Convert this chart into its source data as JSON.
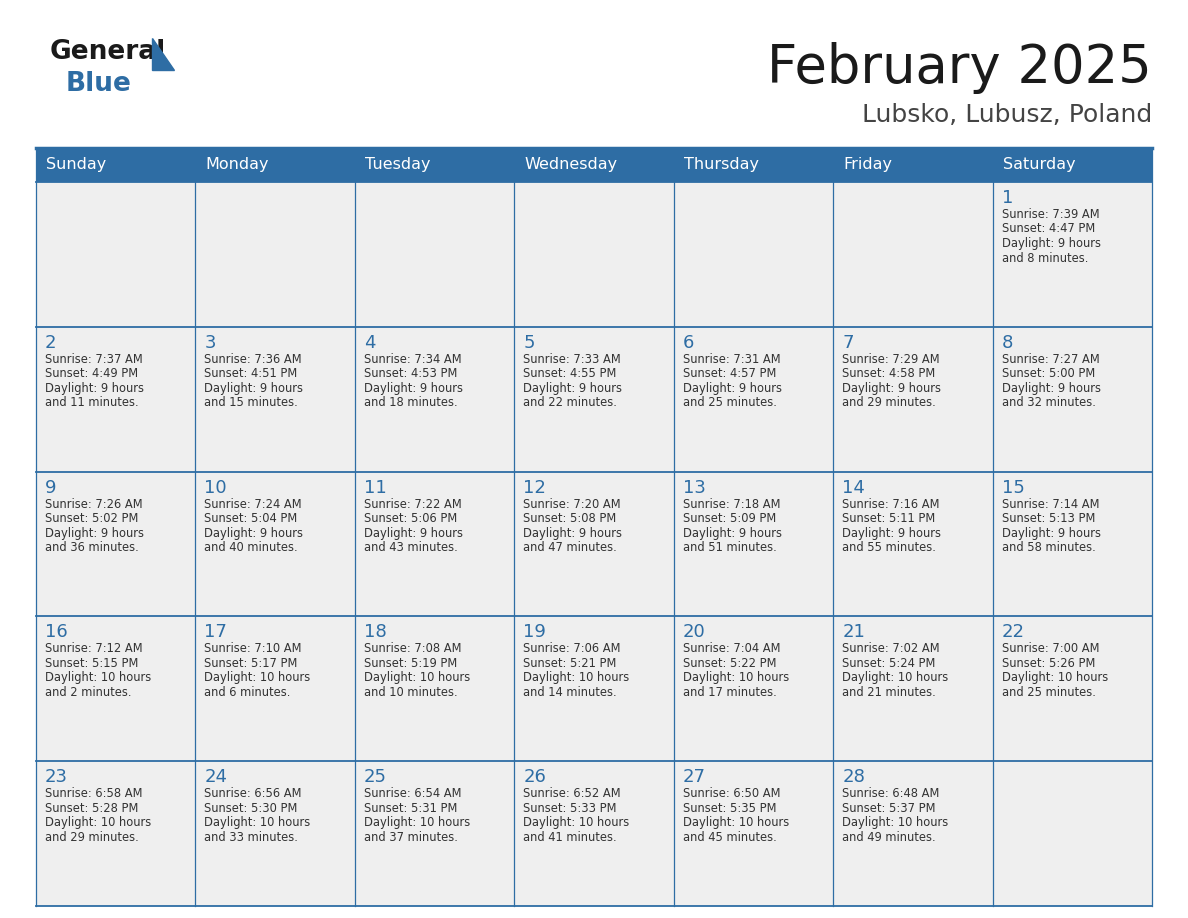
{
  "title": "February 2025",
  "subtitle": "Lubsko, Lubusz, Poland",
  "days_of_week": [
    "Sunday",
    "Monday",
    "Tuesday",
    "Wednesday",
    "Thursday",
    "Friday",
    "Saturday"
  ],
  "header_bg": "#2E6DA4",
  "header_text": "#FFFFFF",
  "cell_bg": "#EFEFEF",
  "border_color": "#2E6DA4",
  "day_number_color": "#2E6DA4",
  "text_color": "#333333",
  "title_color": "#1a1a1a",
  "subtitle_color": "#444444",
  "logo_black": "#1a1a1a",
  "logo_blue": "#2E6DA4",
  "calendar_data": [
    [
      null,
      null,
      null,
      null,
      null,
      null,
      {
        "day": "1",
        "sunrise": "7:39 AM",
        "sunset": "4:47 PM",
        "daylight_h": "9 hours",
        "daylight_m": "8 minutes."
      }
    ],
    [
      {
        "day": "2",
        "sunrise": "7:37 AM",
        "sunset": "4:49 PM",
        "daylight_h": "9 hours",
        "daylight_m": "11 minutes."
      },
      {
        "day": "3",
        "sunrise": "7:36 AM",
        "sunset": "4:51 PM",
        "daylight_h": "9 hours",
        "daylight_m": "15 minutes."
      },
      {
        "day": "4",
        "sunrise": "7:34 AM",
        "sunset": "4:53 PM",
        "daylight_h": "9 hours",
        "daylight_m": "18 minutes."
      },
      {
        "day": "5",
        "sunrise": "7:33 AM",
        "sunset": "4:55 PM",
        "daylight_h": "9 hours",
        "daylight_m": "22 minutes."
      },
      {
        "day": "6",
        "sunrise": "7:31 AM",
        "sunset": "4:57 PM",
        "daylight_h": "9 hours",
        "daylight_m": "25 minutes."
      },
      {
        "day": "7",
        "sunrise": "7:29 AM",
        "sunset": "4:58 PM",
        "daylight_h": "9 hours",
        "daylight_m": "29 minutes."
      },
      {
        "day": "8",
        "sunrise": "7:27 AM",
        "sunset": "5:00 PM",
        "daylight_h": "9 hours",
        "daylight_m": "32 minutes."
      }
    ],
    [
      {
        "day": "9",
        "sunrise": "7:26 AM",
        "sunset": "5:02 PM",
        "daylight_h": "9 hours",
        "daylight_m": "36 minutes."
      },
      {
        "day": "10",
        "sunrise": "7:24 AM",
        "sunset": "5:04 PM",
        "daylight_h": "9 hours",
        "daylight_m": "40 minutes."
      },
      {
        "day": "11",
        "sunrise": "7:22 AM",
        "sunset": "5:06 PM",
        "daylight_h": "9 hours",
        "daylight_m": "43 minutes."
      },
      {
        "day": "12",
        "sunrise": "7:20 AM",
        "sunset": "5:08 PM",
        "daylight_h": "9 hours",
        "daylight_m": "47 minutes."
      },
      {
        "day": "13",
        "sunrise": "7:18 AM",
        "sunset": "5:09 PM",
        "daylight_h": "9 hours",
        "daylight_m": "51 minutes."
      },
      {
        "day": "14",
        "sunrise": "7:16 AM",
        "sunset": "5:11 PM",
        "daylight_h": "9 hours",
        "daylight_m": "55 minutes."
      },
      {
        "day": "15",
        "sunrise": "7:14 AM",
        "sunset": "5:13 PM",
        "daylight_h": "9 hours",
        "daylight_m": "58 minutes."
      }
    ],
    [
      {
        "day": "16",
        "sunrise": "7:12 AM",
        "sunset": "5:15 PM",
        "daylight_h": "10 hours",
        "daylight_m": "2 minutes."
      },
      {
        "day": "17",
        "sunrise": "7:10 AM",
        "sunset": "5:17 PM",
        "daylight_h": "10 hours",
        "daylight_m": "6 minutes."
      },
      {
        "day": "18",
        "sunrise": "7:08 AM",
        "sunset": "5:19 PM",
        "daylight_h": "10 hours",
        "daylight_m": "10 minutes."
      },
      {
        "day": "19",
        "sunrise": "7:06 AM",
        "sunset": "5:21 PM",
        "daylight_h": "10 hours",
        "daylight_m": "14 minutes."
      },
      {
        "day": "20",
        "sunrise": "7:04 AM",
        "sunset": "5:22 PM",
        "daylight_h": "10 hours",
        "daylight_m": "17 minutes."
      },
      {
        "day": "21",
        "sunrise": "7:02 AM",
        "sunset": "5:24 PM",
        "daylight_h": "10 hours",
        "daylight_m": "21 minutes."
      },
      {
        "day": "22",
        "sunrise": "7:00 AM",
        "sunset": "5:26 PM",
        "daylight_h": "10 hours",
        "daylight_m": "25 minutes."
      }
    ],
    [
      {
        "day": "23",
        "sunrise": "6:58 AM",
        "sunset": "5:28 PM",
        "daylight_h": "10 hours",
        "daylight_m": "29 minutes."
      },
      {
        "day": "24",
        "sunrise": "6:56 AM",
        "sunset": "5:30 PM",
        "daylight_h": "10 hours",
        "daylight_m": "33 minutes."
      },
      {
        "day": "25",
        "sunrise": "6:54 AM",
        "sunset": "5:31 PM",
        "daylight_h": "10 hours",
        "daylight_m": "37 minutes."
      },
      {
        "day": "26",
        "sunrise": "6:52 AM",
        "sunset": "5:33 PM",
        "daylight_h": "10 hours",
        "daylight_m": "41 minutes."
      },
      {
        "day": "27",
        "sunrise": "6:50 AM",
        "sunset": "5:35 PM",
        "daylight_h": "10 hours",
        "daylight_m": "45 minutes."
      },
      {
        "day": "28",
        "sunrise": "6:48 AM",
        "sunset": "5:37 PM",
        "daylight_h": "10 hours",
        "daylight_m": "49 minutes."
      },
      null
    ]
  ]
}
